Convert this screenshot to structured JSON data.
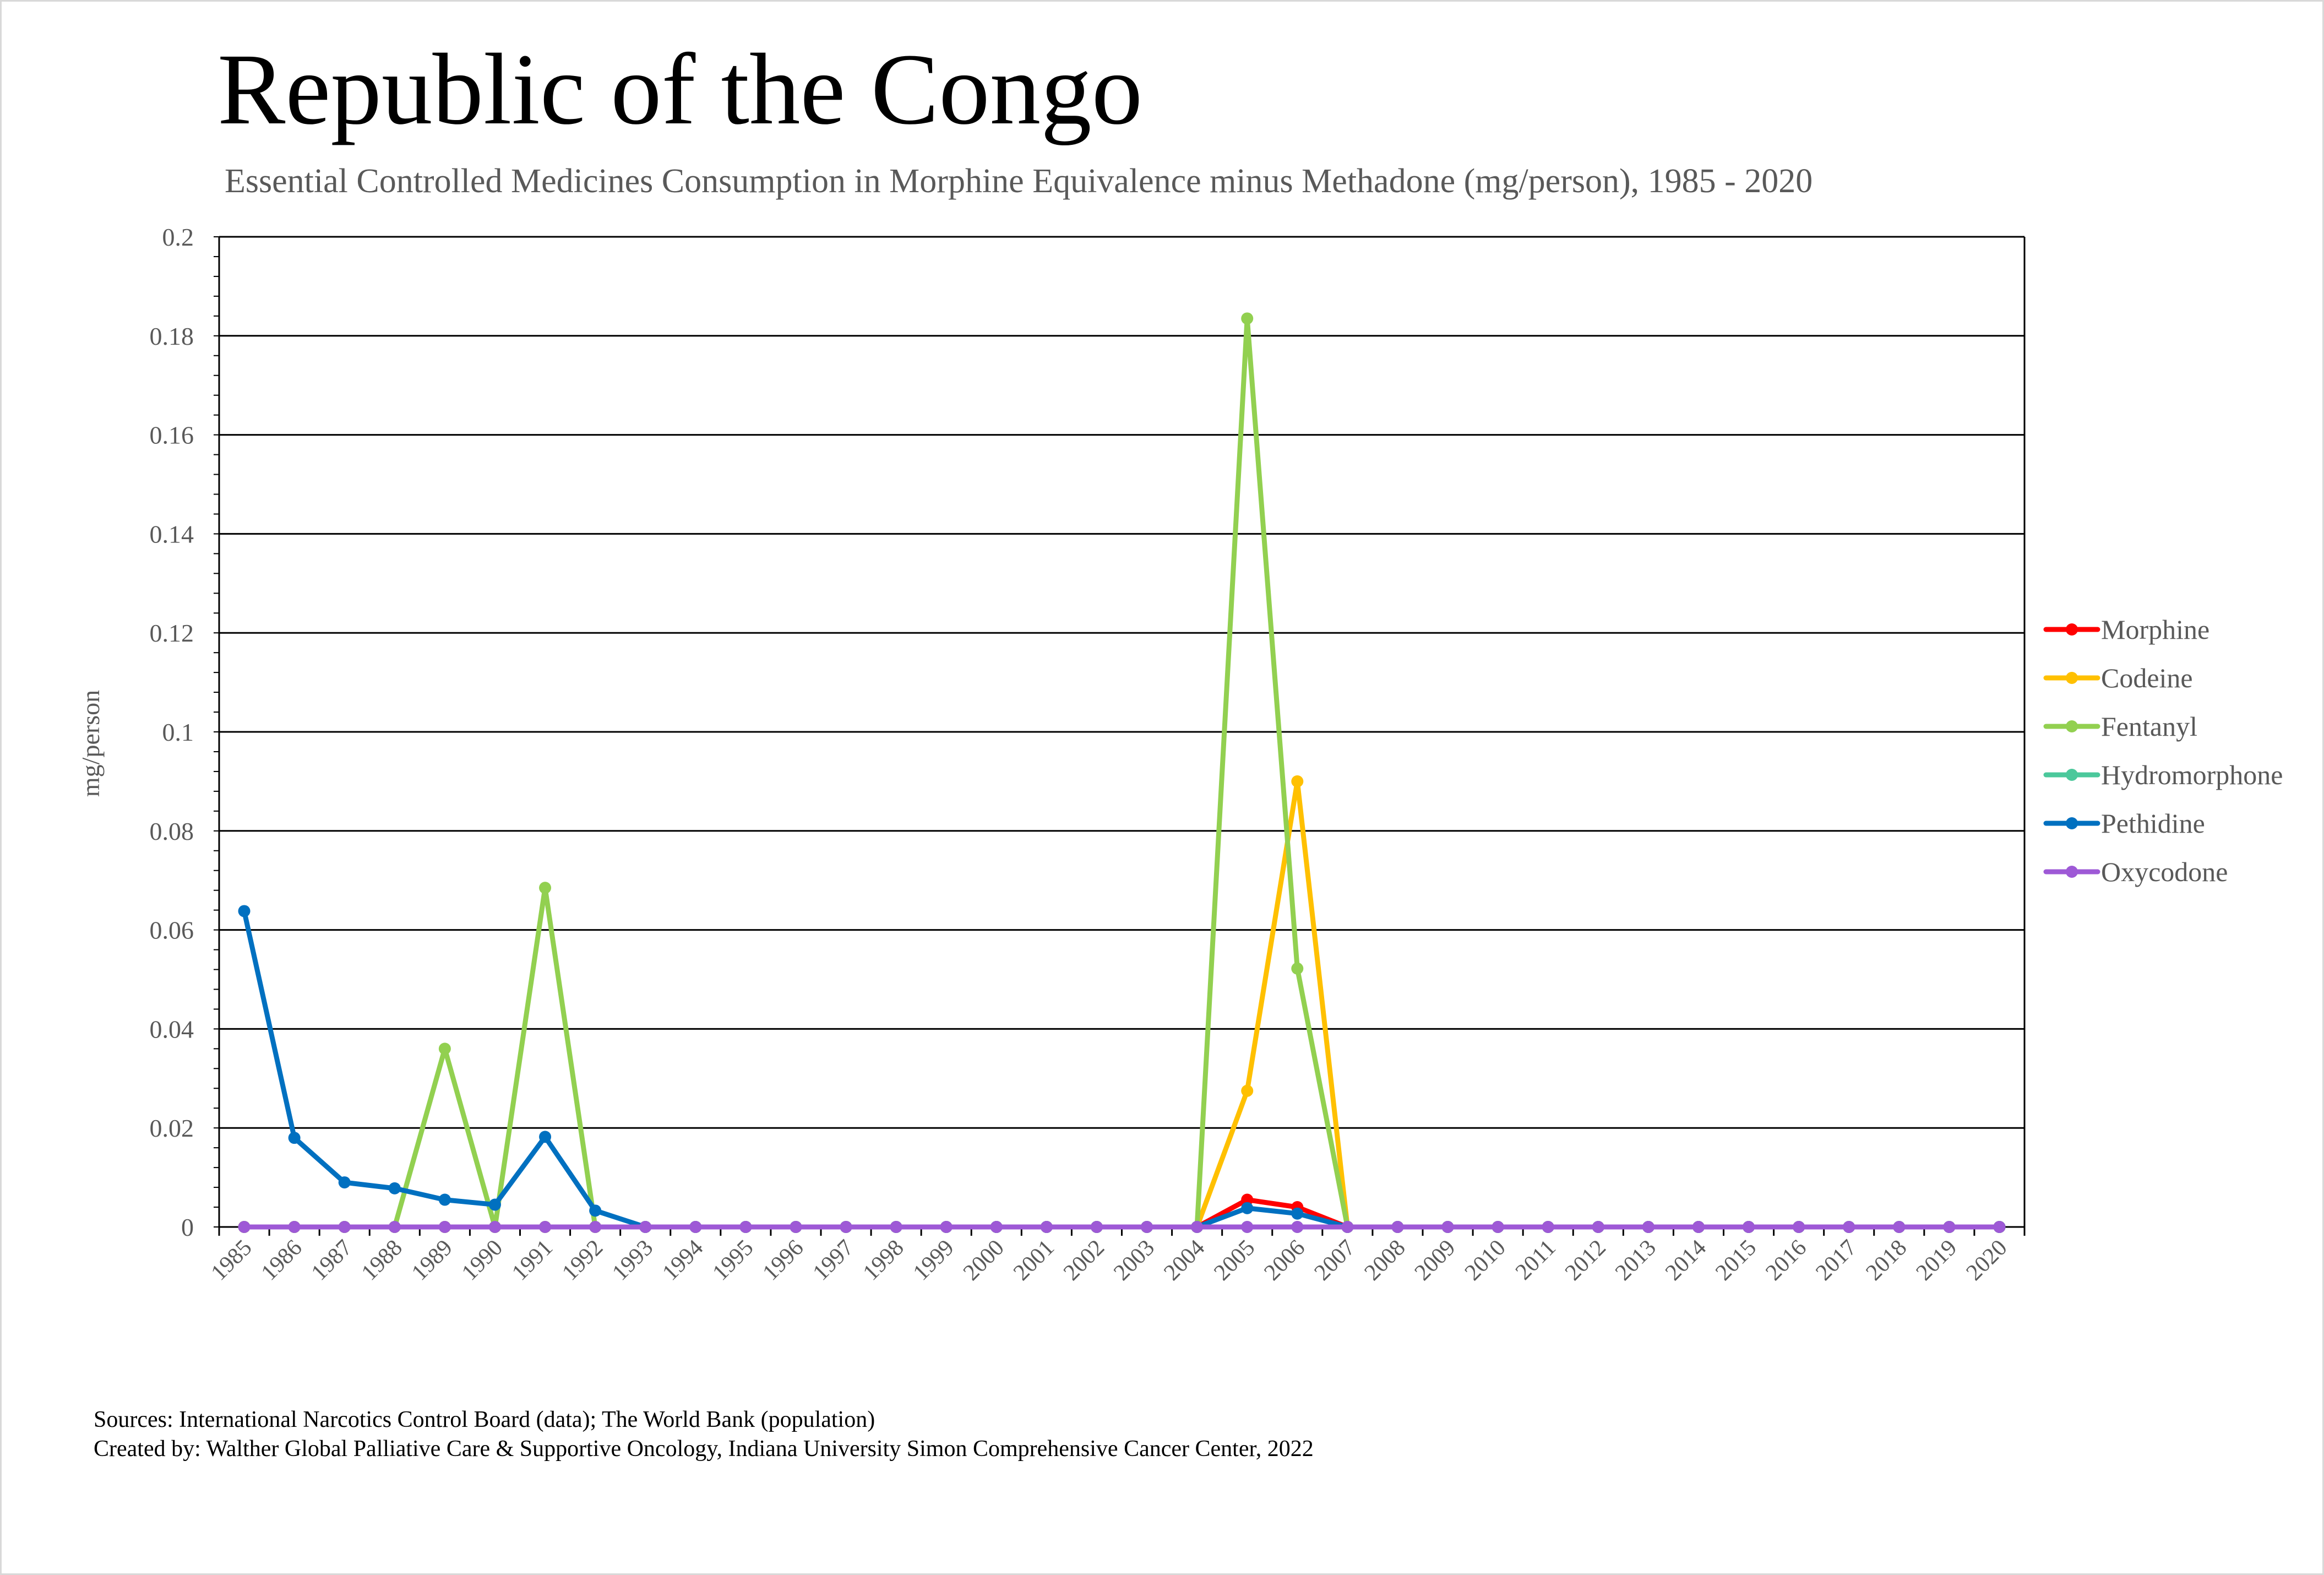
{
  "title": "Republic of the Congo",
  "subtitle": "Essential Controlled Medicines Consumption in Morphine Equivalence minus Methadone (mg/person), 1985 - 2020",
  "sources": {
    "line1": "Sources: International Narcotics Control Board (data); The World Bank (population)",
    "line2": "Created by: Walther Global Palliative Care & Supportive Oncology, Indiana University Simon Comprehensive Cancer Center, 2022"
  },
  "chart_data": {
    "type": "line",
    "title": "Republic of the Congo",
    "subtitle": "Essential Controlled Medicines Consumption in Morphine Equivalence minus Methadone (mg/person), 1985 - 2020",
    "xlabel": "",
    "ylabel": "mg/person",
    "ylim": [
      0,
      0.2
    ],
    "yticks": [
      "0",
      "0.02",
      "0.04",
      "0.06",
      "0.08",
      "0.1",
      "0.12",
      "0.14",
      "0.16",
      "0.18",
      "0.2"
    ],
    "grid": true,
    "legend_position": "right",
    "categories": [
      "1985",
      "1986",
      "1987",
      "1988",
      "1989",
      "1990",
      "1991",
      "1992",
      "1993",
      "1994",
      "1995",
      "1996",
      "1997",
      "1998",
      "1999",
      "2000",
      "2001",
      "2002",
      "2003",
      "2004",
      "2005",
      "2006",
      "2007",
      "2008",
      "2009",
      "2010",
      "2011",
      "2012",
      "2013",
      "2014",
      "2015",
      "2016",
      "2017",
      "2018",
      "2019",
      "2020"
    ],
    "series": [
      {
        "name": "Morphine",
        "color": "#ff0000",
        "values": [
          0,
          0,
          0,
          0,
          0,
          0,
          0,
          0,
          0,
          0,
          0,
          0,
          0,
          0,
          0,
          0,
          0,
          0,
          0,
          0,
          0.0055,
          0.004,
          0,
          0,
          0,
          0,
          0,
          0,
          0,
          0,
          0,
          0,
          0,
          0,
          0,
          0
        ]
      },
      {
        "name": "Codeine",
        "color": "#ffc000",
        "values": [
          0,
          0,
          0,
          0,
          0,
          0,
          0,
          0,
          0,
          0,
          0,
          0,
          0,
          0,
          0,
          0,
          0,
          0,
          0,
          0,
          0.0275,
          0.09,
          0,
          0,
          0,
          0,
          0,
          0,
          0,
          0,
          0,
          0,
          0,
          0,
          0,
          0
        ]
      },
      {
        "name": "Fentanyl",
        "color": "#92d050",
        "values": [
          0,
          0,
          0,
          0,
          0.036,
          0,
          0.0685,
          0,
          0,
          0,
          0,
          0,
          0,
          0,
          0,
          0,
          0,
          0,
          0,
          0,
          0.1835,
          0.0522,
          0,
          0,
          0,
          0,
          0,
          0,
          0,
          0,
          0,
          0,
          0,
          0,
          0,
          0
        ]
      },
      {
        "name": "Hydromorphone",
        "color": "#4bc89b",
        "values": [
          0,
          0,
          0,
          0,
          0,
          0,
          0,
          0,
          0,
          0,
          0,
          0,
          0,
          0,
          0,
          0,
          0,
          0,
          0,
          0,
          0,
          0,
          0,
          0,
          0,
          0,
          0,
          0,
          0,
          0,
          0,
          0,
          0,
          0,
          0,
          0
        ]
      },
      {
        "name": "Pethidine",
        "color": "#0070c0",
        "values": [
          0.0638,
          0.018,
          0.009,
          0.0078,
          0.0055,
          0.0045,
          0.0182,
          0.0033,
          0,
          0,
          0,
          0,
          0,
          0,
          0,
          0,
          0,
          0,
          0,
          0,
          0.0038,
          0.0027,
          0,
          0,
          0,
          0,
          0,
          0,
          0,
          0,
          0,
          0,
          0,
          0,
          0,
          0
        ]
      },
      {
        "name": "Oxycodone",
        "color": "#9e59d6",
        "values": [
          0,
          0,
          0,
          0,
          0,
          0,
          0,
          0,
          0,
          0,
          0,
          0,
          0,
          0,
          0,
          0,
          0,
          0,
          0,
          0,
          0,
          0,
          0,
          0,
          0,
          0,
          0,
          0,
          0,
          0,
          0,
          0,
          0,
          0,
          0,
          0
        ]
      }
    ]
  }
}
